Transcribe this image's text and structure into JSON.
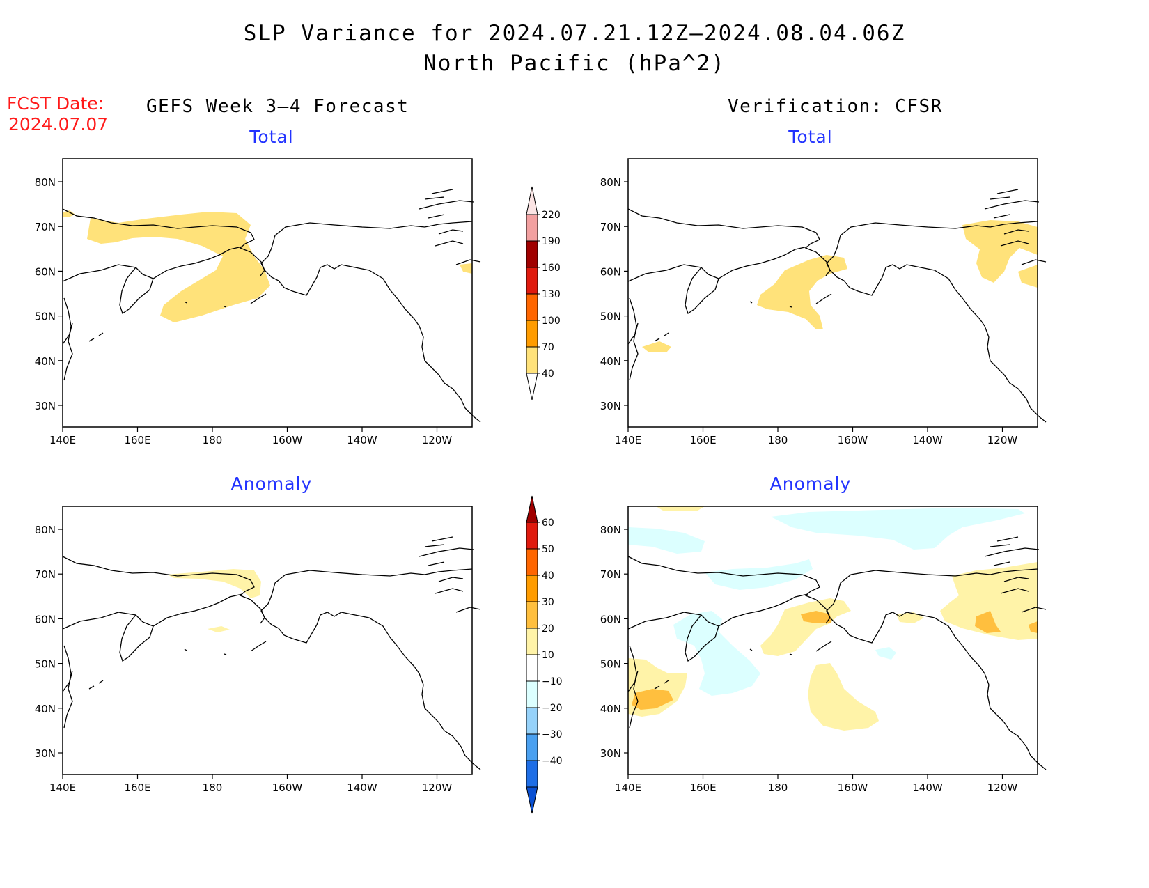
{
  "title_line1": "SLP Variance for 2024.07.21.12Z—2024.08.04.06Z",
  "title_line2": "North Pacific (hPa^2)",
  "fcst_label": "FCST Date:",
  "fcst_date": "2024.07.07",
  "left_heading": "GEFS Week 3–4 Forecast",
  "right_heading": "Verification: CFSR",
  "panel_subtitles": {
    "top_left": "Total",
    "top_right": "Total",
    "bottom_left": "Anomaly",
    "bottom_right": "Anomaly"
  },
  "map_axes": {
    "lon_ticks": [
      "140E",
      "160E",
      "180",
      "160W",
      "140W",
      "120W"
    ],
    "lat_ticks": [
      "80N",
      "70N",
      "60N",
      "50N",
      "40N",
      "30N"
    ]
  },
  "colorbar_total": {
    "labels": [
      "220",
      "190",
      "160",
      "130",
      "100",
      "70",
      "40"
    ],
    "colors": [
      "#fbe4e4",
      "#f2a0a0",
      "#a00000",
      "#e01a0e",
      "#ff6600",
      "#ff9c00",
      "#ffe27a"
    ]
  },
  "colorbar_anomaly": {
    "labels": [
      "60",
      "50",
      "40",
      "30",
      "20",
      "10",
      "−10",
      "−20",
      "−30",
      "−40"
    ],
    "colors": [
      "#a00000",
      "#e01a0e",
      "#ff6600",
      "#ff9c00",
      "#ffbf3e",
      "#fff3a8",
      "#ffffff",
      "#dcffff",
      "#96d2fa",
      "#4aa0f0",
      "#1e6ee6",
      "#0a50d2"
    ]
  },
  "shading_colors": {
    "total_40_70": "#ffe27a",
    "anom_10_20": "#fff3a8",
    "anom_20_30": "#ffbf3e",
    "anom_neg_10_20": "#dcffff",
    "anom_neg_20_30": "#96d2fa"
  }
}
